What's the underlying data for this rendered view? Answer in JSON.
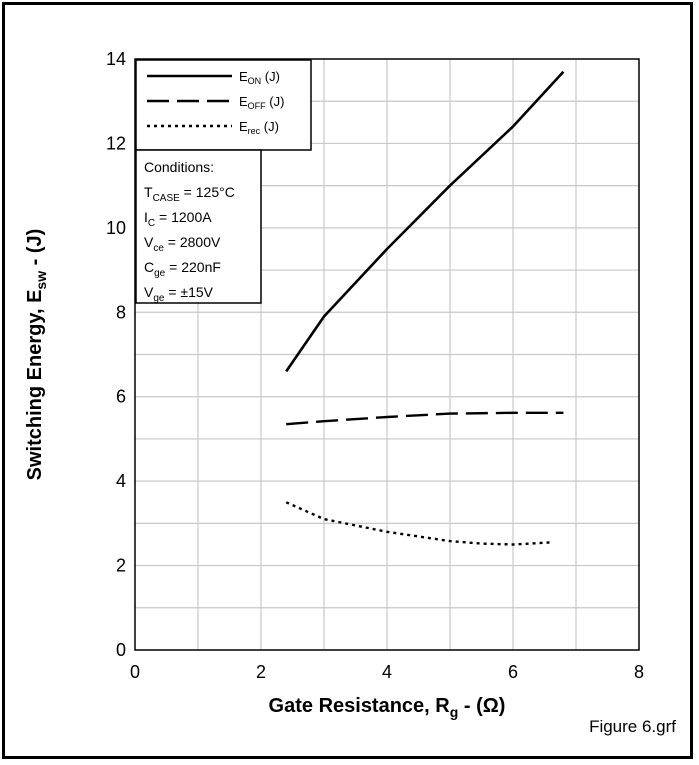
{
  "chart_data": {
    "type": "line",
    "xlabel": "Gate Resistance, Rg - (Ω)",
    "ylabel": "Switching Energy, Esw - (J)",
    "xlim": [
      0,
      8
    ],
    "ylim": [
      0,
      14
    ],
    "x_ticks": [
      "0",
      "2",
      "4",
      "6",
      "8"
    ],
    "y_ticks": [
      "0",
      "2",
      "4",
      "6",
      "8",
      "10",
      "12",
      "14"
    ],
    "grid": true,
    "legend_position": "top-left",
    "series": [
      {
        "name": "EON (J)",
        "style": "solid",
        "x": [
          2.4,
          3.0,
          4.0,
          5.0,
          6.0,
          6.8
        ],
        "values": [
          6.6,
          7.9,
          9.5,
          11.0,
          12.4,
          13.7
        ]
      },
      {
        "name": "EOFF (J)",
        "style": "dashed",
        "x": [
          2.4,
          3.0,
          4.0,
          5.0,
          6.0,
          6.8
        ],
        "values": [
          5.35,
          5.42,
          5.52,
          5.6,
          5.62,
          5.62
        ]
      },
      {
        "name": "Erec (J)",
        "style": "dotted",
        "x": [
          2.4,
          3.0,
          4.0,
          5.0,
          5.5,
          6.0,
          6.6
        ],
        "values": [
          3.5,
          3.1,
          2.8,
          2.58,
          2.52,
          2.5,
          2.55
        ]
      }
    ],
    "conditions": {
      "heading": "Conditions:",
      "lines": [
        "TCASE = 125°C",
        "IC = 1200A",
        "Vce = 2800V",
        "Cge = 220nF",
        "Vge = ±15V"
      ]
    }
  },
  "footer": "Figure 6.grf",
  "colors": {
    "line": "#000000",
    "grid": "#c8c8c8",
    "background": "#ffffff"
  }
}
